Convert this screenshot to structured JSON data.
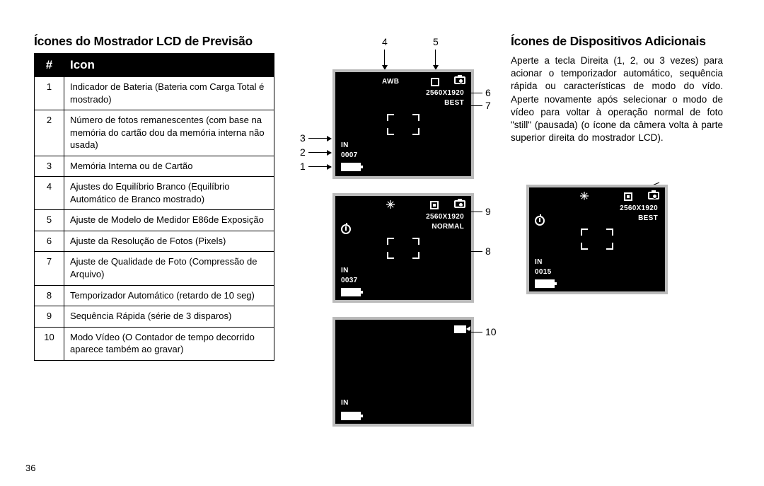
{
  "page_number": "36",
  "left": {
    "title": "Ícones do Mostrador LCD de Previsão",
    "header_num": "#",
    "header_icon": "Icon",
    "rows": [
      {
        "n": "1",
        "t": "Indicador de Bateria (Bateria com Carga Total é mostrado)"
      },
      {
        "n": "2",
        "t": "Número de fotos remanescentes (com base na memória do cartão dou da memória interna não usada)"
      },
      {
        "n": "3",
        "t": "Memória Interna ou de Cartão"
      },
      {
        "n": "4",
        "t": "Ajustes do Equilíbrio Branco (Equilíbrio Automático de Branco mostrado)"
      },
      {
        "n": "5",
        "t": "Ajuste de Modelo de Medidor E86de Exposição"
      },
      {
        "n": "6",
        "t": "Ajuste da Resolução de Fotos (Pixels)"
      },
      {
        "n": "7",
        "t": "Ajuste de Qualidade de Foto (Compressão de Arquivo)"
      },
      {
        "n": "8",
        "t": "Temporizador Automático (retardo de 10 seg)"
      },
      {
        "n": "9",
        "t": "Sequência Rápida (série de 3 disparos)"
      },
      {
        "n": "10",
        "t": "Modo Vídeo (O Contador de tempo decorrido aparece também ao gravar)"
      }
    ]
  },
  "mid": {
    "callouts": {
      "top_left": [
        "4",
        "5"
      ],
      "left_side": [
        "3",
        "2",
        "1"
      ],
      "right_1": [
        "6",
        "7"
      ],
      "right_2": [
        "9",
        "8"
      ],
      "right_3": [
        "10"
      ]
    },
    "lcd1": {
      "awb": "AWB",
      "res": "2560X1920",
      "qual": "BEST",
      "mem": "IN",
      "shots": "0007"
    },
    "lcd2": {
      "res": "2560X1920",
      "qual": "NORMAL",
      "mem": "IN",
      "shots": "0037"
    },
    "lcd3": {
      "mem": "IN"
    }
  },
  "right": {
    "title": "Ícones de Dispositivos Adicionais",
    "body": "Aperte a tecla Direita (1, 2, ou 3 vezes) para acionar o temporizador automático, sequência rápida ou características de modo do vído. Aperte novamente após selecionar o modo de vídeo para voltar à operação normal de foto \"still\" (pausada) (o ícone da câmera volta à parte superior direita do mostrador LCD).",
    "lcd4": {
      "res": "2560X1920",
      "qual": "BEST",
      "mem": "IN",
      "shots": "0015"
    }
  },
  "colors": {
    "ink": "#000000",
    "paper": "#ffffff",
    "lcd_border": "#bbbbbb"
  }
}
